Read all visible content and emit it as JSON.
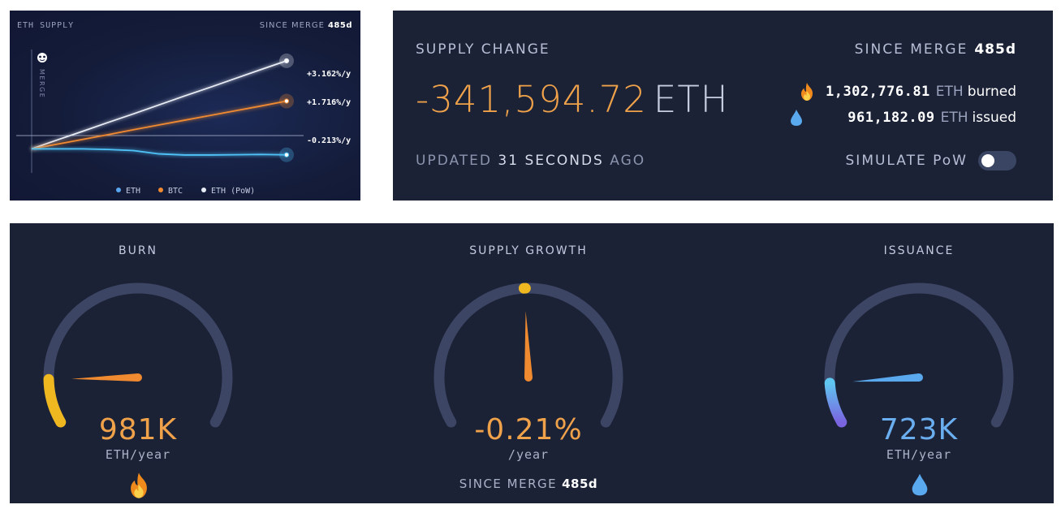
{
  "eth_supply_chart": {
    "title": "ETH SUPPLY",
    "since_label": "SINCE MERGE",
    "since_value": "485d",
    "merge_label": "MERGE",
    "legend": [
      {
        "label": "ETH",
        "color": "#5aa5f0"
      },
      {
        "label": "BTC",
        "color": "#f08a30"
      },
      {
        "label": "ETH (PoW)",
        "color": "#e8ecf5"
      }
    ],
    "rate_labels": {
      "eth_pow": "+3.162%/y",
      "btc": "+1.716%/y",
      "eth": "-0.213%/y"
    },
    "chart_data": {
      "type": "line",
      "x": [
        0,
        0.1,
        0.2,
        0.3,
        0.4,
        0.5,
        0.6,
        0.7,
        0.8,
        0.9,
        1.0
      ],
      "series": [
        {
          "name": "ETH (PoW)",
          "color": "#e8ecf5",
          "values": [
            0,
            0.32,
            0.63,
            0.95,
            1.26,
            1.58,
            1.9,
            2.21,
            2.53,
            2.85,
            3.162
          ]
        },
        {
          "name": "BTC",
          "color": "#f08a30",
          "values": [
            0,
            0.17,
            0.34,
            0.51,
            0.69,
            0.86,
            1.03,
            1.2,
            1.37,
            1.54,
            1.716
          ]
        },
        {
          "name": "ETH",
          "color": "#4fc3f7",
          "values": [
            0,
            0.0,
            0.0,
            -0.02,
            -0.06,
            -0.18,
            -0.22,
            -0.22,
            -0.21,
            -0.2,
            -0.213
          ]
        }
      ],
      "ylim": [
        -0.6,
        3.8
      ]
    }
  },
  "supply_change": {
    "title": "SUPPLY CHANGE",
    "since_label": "SINCE MERGE",
    "since_value": "485d",
    "value": "-341,594.72",
    "unit": "ETH",
    "updated_prefix": "UPDATED",
    "updated_value": "31 SECONDS",
    "updated_suffix": "AGO",
    "burned_value": "1,302,776.81",
    "burned_unit": "ETH",
    "burned_word": "burned",
    "issued_value": "961,182.09",
    "issued_unit": "ETH",
    "issued_word": "issued",
    "simulate_label": "SIMULATE PoW",
    "simulate_on": false
  },
  "gauges": {
    "burn": {
      "title": "BURN",
      "value": "981K",
      "unit": "ETH/year",
      "icon": "fire-icon",
      "color": "#f0a24a",
      "level": 0.12
    },
    "supply_growth": {
      "title": "SUPPLY GROWTH",
      "value": "-0.21%",
      "unit": "/year",
      "since_label": "SINCE MERGE",
      "since_value": "485d",
      "color": "#f0a24a",
      "level": 0.49
    },
    "issuance": {
      "title": "ISSUANCE",
      "value": "723K",
      "unit": "ETH/year",
      "icon": "droplet-icon",
      "color": "#6aaef0",
      "level": 0.11
    }
  }
}
